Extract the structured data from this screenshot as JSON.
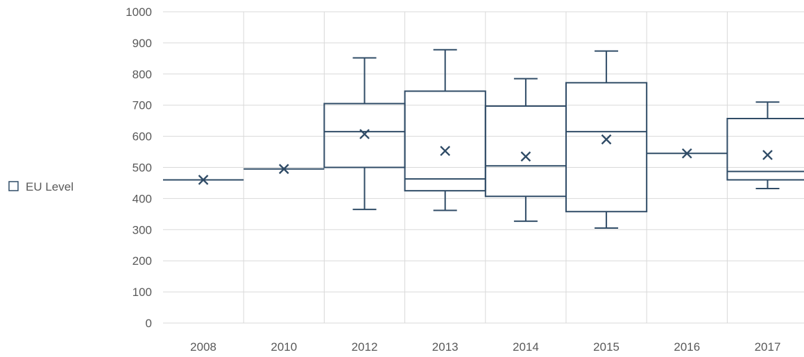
{
  "chart_data": {
    "type": "box",
    "title": "",
    "xlabel": "",
    "ylabel": "",
    "ylim": [
      0,
      1000
    ],
    "y_ticks": [
      "0",
      "100",
      "200",
      "300",
      "400",
      "500",
      "600",
      "700",
      "800",
      "900",
      "1000"
    ],
    "grid": true,
    "legend": {
      "position": "left",
      "entries": [
        "EU Level"
      ]
    },
    "series": [
      {
        "name": "EU Level",
        "color": "#2f4b66",
        "boxes": [
          {
            "category": "2008",
            "min": 460,
            "q1": 460,
            "median": 460,
            "q3": 460,
            "max": 460,
            "mean": 460
          },
          {
            "category": "2010",
            "min": 495,
            "q1": 495,
            "median": 495,
            "q3": 495,
            "max": 495,
            "mean": 495
          },
          {
            "category": "2012",
            "min": 365,
            "q1": 500,
            "median": 615,
            "q3": 705,
            "max": 852,
            "mean": 607
          },
          {
            "category": "2013",
            "min": 362,
            "q1": 425,
            "median": 463,
            "q3": 745,
            "max": 878,
            "mean": 553
          },
          {
            "category": "2014",
            "min": 327,
            "q1": 407,
            "median": 505,
            "q3": 697,
            "max": 785,
            "mean": 535
          },
          {
            "category": "2015",
            "min": 305,
            "q1": 358,
            "median": 615,
            "q3": 772,
            "max": 874,
            "mean": 590
          },
          {
            "category": "2016",
            "min": 545,
            "q1": 545,
            "median": 545,
            "q3": 545,
            "max": 545,
            "mean": 545
          },
          {
            "category": "2017",
            "min": 432,
            "q1": 460,
            "median": 487,
            "q3": 657,
            "max": 710,
            "mean": 540
          }
        ]
      }
    ]
  }
}
